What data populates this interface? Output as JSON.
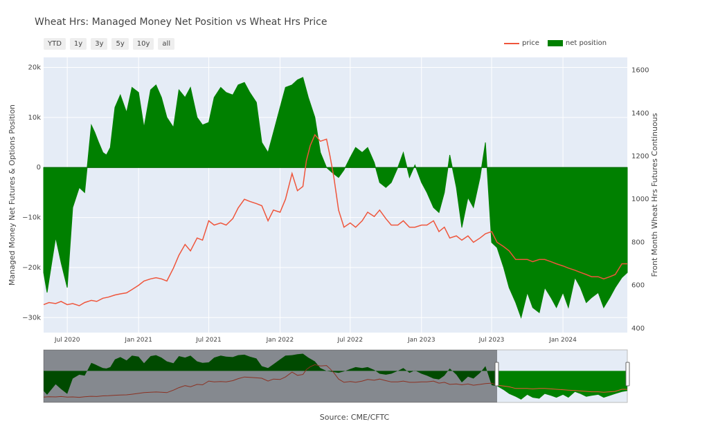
{
  "chart_data": {
    "type": "area",
    "title": "Wheat Hrs: Managed Money Net Position vs Wheat Hrs Price",
    "ylabel_left": "Managed Money Net Futures & Options Position",
    "ylabel_right": "Front Month Wheat Hrs Futures Continuous",
    "source": "Source: CME/CFTC",
    "range_buttons": [
      "YTD",
      "1y",
      "3y",
      "5y",
      "10y",
      "all"
    ],
    "legend": [
      "price",
      "net position"
    ],
    "x_tick_labels": [
      "Jul 2020",
      "Jan 2021",
      "Jul 2021",
      "Jan 2022",
      "Jul 2022",
      "Jan 2023",
      "Jul 2023",
      "Jan 2024"
    ],
    "y_left_ticks": [
      "20k",
      "10k",
      "0",
      "−10k",
      "−20k",
      "−30k"
    ],
    "y_right_ticks": [
      "1600",
      "1400",
      "1200",
      "1000",
      "800",
      "600",
      "400"
    ],
    "y_left_range": [
      -33000,
      22000
    ],
    "y_right_range": [
      380,
      1660
    ],
    "x_range": [
      "2020-05-01",
      "2024-06-15"
    ],
    "colors": {
      "price": "#ef553b",
      "net_position": "#008000",
      "plot_bg": "#e5ecf6",
      "grid": "#ffffff"
    },
    "net_position": {
      "x": [
        "2020-05-01",
        "2020-05-10",
        "2020-05-20",
        "2020-06-01",
        "2020-06-15",
        "2020-07-01",
        "2020-07-15",
        "2020-08-01",
        "2020-08-15",
        "2020-09-01",
        "2020-09-10",
        "2020-09-20",
        "2020-10-01",
        "2020-10-10",
        "2020-10-20",
        "2020-11-01",
        "2020-11-15",
        "2020-12-01",
        "2020-12-15",
        "2021-01-01",
        "2021-01-15",
        "2021-02-01",
        "2021-02-15",
        "2021-03-01",
        "2021-03-15",
        "2021-04-01",
        "2021-04-15",
        "2021-05-01",
        "2021-05-15",
        "2021-06-01",
        "2021-06-15",
        "2021-07-01",
        "2021-07-15",
        "2021-08-01",
        "2021-08-15",
        "2021-09-01",
        "2021-09-15",
        "2021-10-01",
        "2021-10-15",
        "2021-11-01",
        "2021-11-15",
        "2021-12-01",
        "2021-12-15",
        "2022-01-01",
        "2022-01-15",
        "2022-02-01",
        "2022-02-15",
        "2022-03-01",
        "2022-03-15",
        "2022-04-01",
        "2022-04-15",
        "2022-05-01",
        "2022-05-15",
        "2022-06-01",
        "2022-06-15",
        "2022-07-01",
        "2022-07-15",
        "2022-08-01",
        "2022-08-15",
        "2022-09-01",
        "2022-09-15",
        "2022-10-01",
        "2022-10-15",
        "2022-11-01",
        "2022-11-15",
        "2022-12-01",
        "2022-12-15",
        "2023-01-01",
        "2023-01-15",
        "2023-02-01",
        "2023-02-15",
        "2023-03-01",
        "2023-03-15",
        "2023-04-01",
        "2023-04-15",
        "2023-05-01",
        "2023-05-15",
        "2023-06-01",
        "2023-06-15",
        "2023-07-01",
        "2023-07-15",
        "2023-08-01",
        "2023-08-15",
        "2023-09-01",
        "2023-09-15",
        "2023-10-01",
        "2023-10-15",
        "2023-11-01",
        "2023-11-15",
        "2023-12-01",
        "2023-12-15",
        "2024-01-01",
        "2024-01-15",
        "2024-02-01",
        "2024-02-15",
        "2024-03-01",
        "2024-03-15",
        "2024-04-01",
        "2024-04-15",
        "2024-05-01",
        "2024-05-15",
        "2024-06-01",
        "2024-06-15"
      ],
      "values": [
        -21000,
        -25000,
        -20000,
        -14000,
        -19000,
        -24000,
        -8000,
        -4000,
        -5000,
        8500,
        7000,
        5000,
        3000,
        2500,
        4000,
        12000,
        14500,
        11000,
        16000,
        15000,
        8000,
        15500,
        16500,
        14000,
        10000,
        8000,
        15500,
        14000,
        16000,
        10000,
        8500,
        9000,
        14000,
        16000,
        15000,
        14500,
        16500,
        17000,
        15000,
        13000,
        5000,
        3000,
        7000,
        12000,
        16000,
        16500,
        17500,
        18000,
        14000,
        10000,
        3000,
        0,
        -1000,
        -2000,
        -500,
        2000,
        4000,
        3000,
        4000,
        1000,
        -3000,
        -4000,
        -3000,
        0,
        3000,
        -2000,
        500,
        -3000,
        -5000,
        -8000,
        -9000,
        -5000,
        2500,
        -4000,
        -12000,
        -6000,
        -8000,
        -2000,
        5000,
        -15000,
        -16000,
        -20000,
        -24000,
        -27000,
        -30000,
        -25000,
        -28000,
        -29000,
        -24000,
        -26000,
        -28000,
        -25000,
        -28000,
        -22000,
        -24000,
        -27000,
        -26000,
        -25000,
        -28000,
        -26000,
        -24000,
        -22000,
        -21000
      ]
    },
    "price": {
      "x": [
        "2020-05-01",
        "2020-05-15",
        "2020-06-01",
        "2020-06-15",
        "2020-07-01",
        "2020-07-15",
        "2020-08-01",
        "2020-08-15",
        "2020-09-01",
        "2020-09-15",
        "2020-10-01",
        "2020-10-15",
        "2020-11-01",
        "2020-11-15",
        "2020-12-01",
        "2020-12-15",
        "2021-01-01",
        "2021-01-15",
        "2021-02-01",
        "2021-02-15",
        "2021-03-01",
        "2021-03-15",
        "2021-04-01",
        "2021-04-15",
        "2021-05-01",
        "2021-05-15",
        "2021-06-01",
        "2021-06-15",
        "2021-07-01",
        "2021-07-15",
        "2021-08-01",
        "2021-08-15",
        "2021-09-01",
        "2021-09-15",
        "2021-10-01",
        "2021-10-15",
        "2021-11-01",
        "2021-11-15",
        "2021-12-01",
        "2021-12-15",
        "2022-01-01",
        "2022-01-15",
        "2022-02-01",
        "2022-02-15",
        "2022-03-01",
        "2022-03-10",
        "2022-03-20",
        "2022-04-01",
        "2022-04-15",
        "2022-05-01",
        "2022-05-10",
        "2022-05-20",
        "2022-06-01",
        "2022-06-15",
        "2022-07-01",
        "2022-07-15",
        "2022-08-01",
        "2022-08-15",
        "2022-09-01",
        "2022-09-15",
        "2022-10-01",
        "2022-10-15",
        "2022-11-01",
        "2022-11-15",
        "2022-12-01",
        "2022-12-15",
        "2023-01-01",
        "2023-01-15",
        "2023-02-01",
        "2023-02-15",
        "2023-03-01",
        "2023-03-15",
        "2023-04-01",
        "2023-04-15",
        "2023-05-01",
        "2023-05-15",
        "2023-06-01",
        "2023-06-15",
        "2023-07-01",
        "2023-07-15",
        "2023-08-01",
        "2023-08-15",
        "2023-09-01",
        "2023-09-15",
        "2023-10-01",
        "2023-10-15",
        "2023-11-01",
        "2023-11-15",
        "2023-12-01",
        "2023-12-15",
        "2024-01-01",
        "2024-01-15",
        "2024-02-01",
        "2024-02-15",
        "2024-03-01",
        "2024-03-15",
        "2024-04-01",
        "2024-04-15",
        "2024-05-01",
        "2024-05-15",
        "2024-06-01",
        "2024-06-15"
      ],
      "values": [
        510,
        520,
        515,
        525,
        510,
        515,
        505,
        520,
        530,
        525,
        540,
        545,
        555,
        560,
        565,
        580,
        600,
        620,
        630,
        635,
        630,
        620,
        680,
        740,
        790,
        760,
        820,
        810,
        900,
        880,
        890,
        880,
        910,
        960,
        1000,
        990,
        980,
        970,
        900,
        950,
        940,
        1000,
        1120,
        1040,
        1060,
        1180,
        1250,
        1300,
        1270,
        1280,
        1200,
        1100,
        950,
        870,
        890,
        870,
        900,
        940,
        920,
        950,
        910,
        880,
        880,
        900,
        870,
        870,
        880,
        880,
        900,
        850,
        870,
        820,
        830,
        810,
        830,
        800,
        820,
        840,
        850,
        800,
        780,
        760,
        720,
        720,
        720,
        710,
        720,
        720,
        710,
        700,
        690,
        680,
        670,
        660,
        650,
        640,
        640,
        630,
        640,
        650,
        700,
        700
      ]
    }
  }
}
